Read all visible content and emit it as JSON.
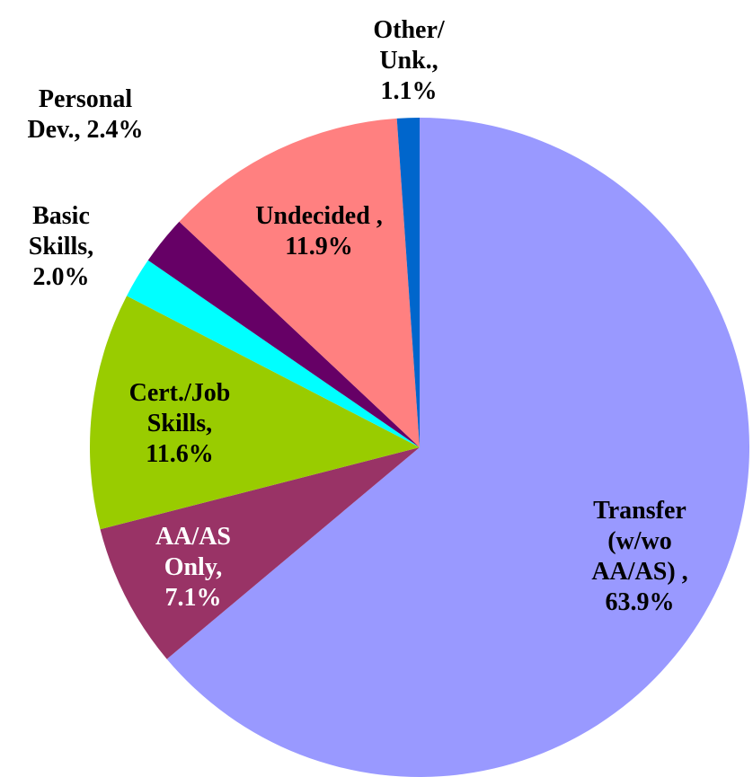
{
  "chart_data": {
    "type": "pie",
    "categories": [
      "Transfer (w/wo AA/AS) ,",
      "AA/AS Only,",
      "Cert./Job Skills,",
      "Basic Skills,",
      "Personal Dev.,",
      "Undecided ,",
      "Other/ Unk.,"
    ],
    "values": [
      63.9,
      7.1,
      11.6,
      2.0,
      2.4,
      11.9,
      1.1
    ],
    "value_labels": [
      "63.9%",
      "7.1%",
      "11.6%",
      "2.0%",
      "2.4%",
      "11.9%",
      "1.1%"
    ],
    "colors": [
      "#9999ff",
      "#993366",
      "#99cc00",
      "#00ffff",
      "#660066",
      "#ff8080",
      "#0066cc"
    ]
  }
}
